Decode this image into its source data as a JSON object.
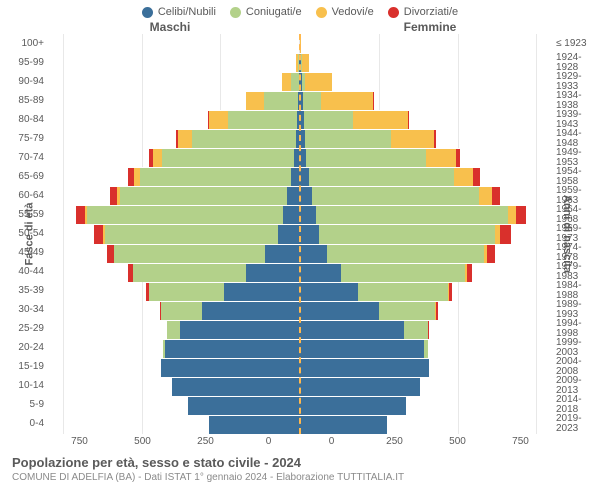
{
  "chart": {
    "type": "population-pyramid",
    "title": "Popolazione per età, sesso e stato civile - 2024",
    "subtitle": "COMUNE DI ADELFIA (BA) - Dati ISTAT 1° gennaio 2024 - Elaborazione TUTTITALIA.IT",
    "legend": [
      {
        "label": "Celibi/Nubili",
        "color": "#3b6f9a"
      },
      {
        "label": "Coniugati/e",
        "color": "#b3d18a"
      },
      {
        "label": "Vedovi/e",
        "color": "#f8c04d"
      },
      {
        "label": "Divorziati/e",
        "color": "#d9302c"
      }
    ],
    "gender_left_label": "Maschi",
    "gender_right_label": "Femmine",
    "yaxis_left_title": "Fasce di età",
    "yaxis_right_title": "Anni di nascita",
    "xlim": 800,
    "xticks_left": [
      "0",
      "250",
      "500",
      "750"
    ],
    "xticks_right": [
      "0",
      "250",
      "500",
      "750"
    ],
    "grid_step": 250,
    "grid_color": "#e8e8e8",
    "background_color": "#ffffff",
    "centerline_color": "#f8c04d",
    "label_fontsize": 10,
    "title_fontsize": 13,
    "age_bands": [
      "100+",
      "95-99",
      "90-94",
      "85-89",
      "80-84",
      "75-79",
      "70-74",
      "65-69",
      "60-64",
      "55-59",
      "50-54",
      "45-49",
      "40-44",
      "35-39",
      "30-34",
      "25-29",
      "20-24",
      "15-19",
      "10-14",
      "5-9",
      "0-4"
    ],
    "birth_years": [
      "≤ 1923",
      "1924-1928",
      "1929-1933",
      "1934-1938",
      "1939-1943",
      "1944-1948",
      "1949-1953",
      "1954-1958",
      "1959-1963",
      "1964-1968",
      "1969-1973",
      "1974-1978",
      "1979-1983",
      "1984-1988",
      "1989-1993",
      "1994-1998",
      "1999-2003",
      "2004-2008",
      "2009-2013",
      "2014-2018",
      "2019-2023"
    ],
    "males": [
      {
        "single": 0,
        "married": 0,
        "widowed": 1,
        "divorced": 0
      },
      {
        "single": 2,
        "married": 4,
        "widowed": 8,
        "divorced": 0
      },
      {
        "single": 3,
        "married": 25,
        "widowed": 30,
        "divorced": 0
      },
      {
        "single": 5,
        "married": 110,
        "widowed": 55,
        "divorced": 0
      },
      {
        "single": 8,
        "married": 220,
        "widowed": 60,
        "divorced": 3
      },
      {
        "single": 12,
        "married": 330,
        "widowed": 45,
        "divorced": 6
      },
      {
        "single": 18,
        "married": 420,
        "widowed": 30,
        "divorced": 12
      },
      {
        "single": 28,
        "married": 480,
        "widowed": 20,
        "divorced": 18
      },
      {
        "single": 40,
        "married": 530,
        "widowed": 12,
        "divorced": 22
      },
      {
        "single": 55,
        "married": 620,
        "widowed": 8,
        "divorced": 28
      },
      {
        "single": 70,
        "married": 550,
        "widowed": 5,
        "divorced": 30
      },
      {
        "single": 110,
        "married": 480,
        "widowed": 2,
        "divorced": 22
      },
      {
        "single": 170,
        "married": 360,
        "widowed": 1,
        "divorced": 15
      },
      {
        "single": 240,
        "married": 240,
        "widowed": 0,
        "divorced": 10
      },
      {
        "single": 310,
        "married": 132,
        "widowed": 0,
        "divorced": 4
      },
      {
        "single": 380,
        "married": 42,
        "widowed": 0,
        "divorced": 1
      },
      {
        "single": 430,
        "married": 4,
        "widowed": 0,
        "divorced": 0
      },
      {
        "single": 440,
        "married": 0,
        "widowed": 0,
        "divorced": 0
      },
      {
        "single": 405,
        "married": 0,
        "widowed": 0,
        "divorced": 0
      },
      {
        "single": 355,
        "married": 0,
        "widowed": 0,
        "divorced": 0
      },
      {
        "single": 290,
        "married": 0,
        "widowed": 0,
        "divorced": 0
      }
    ],
    "females": [
      {
        "single": 0,
        "married": 0,
        "widowed": 2,
        "divorced": 0
      },
      {
        "single": 3,
        "married": 2,
        "widowed": 25,
        "divorced": 0
      },
      {
        "single": 5,
        "married": 12,
        "widowed": 85,
        "divorced": 0
      },
      {
        "single": 8,
        "married": 60,
        "widowed": 165,
        "divorced": 2
      },
      {
        "single": 12,
        "married": 155,
        "widowed": 175,
        "divorced": 4
      },
      {
        "single": 15,
        "married": 275,
        "widowed": 135,
        "divorced": 8
      },
      {
        "single": 20,
        "married": 380,
        "widowed": 95,
        "divorced": 14
      },
      {
        "single": 28,
        "married": 460,
        "widowed": 62,
        "divorced": 20
      },
      {
        "single": 38,
        "married": 530,
        "widowed": 40,
        "divorced": 26
      },
      {
        "single": 50,
        "married": 610,
        "widowed": 25,
        "divorced": 32
      },
      {
        "single": 60,
        "married": 560,
        "widowed": 15,
        "divorced": 34
      },
      {
        "single": 85,
        "married": 500,
        "widowed": 8,
        "divorced": 26
      },
      {
        "single": 130,
        "married": 395,
        "widowed": 4,
        "divorced": 18
      },
      {
        "single": 185,
        "married": 285,
        "widowed": 2,
        "divorced": 12
      },
      {
        "single": 250,
        "married": 180,
        "widowed": 1,
        "divorced": 6
      },
      {
        "single": 330,
        "married": 75,
        "widowed": 0,
        "divorced": 2
      },
      {
        "single": 395,
        "married": 12,
        "widowed": 0,
        "divorced": 0
      },
      {
        "single": 410,
        "married": 0,
        "widowed": 0,
        "divorced": 0
      },
      {
        "single": 380,
        "married": 0,
        "widowed": 0,
        "divorced": 0
      },
      {
        "single": 335,
        "married": 0,
        "widowed": 0,
        "divorced": 0
      },
      {
        "single": 275,
        "married": 0,
        "widowed": 0,
        "divorced": 0
      }
    ]
  }
}
